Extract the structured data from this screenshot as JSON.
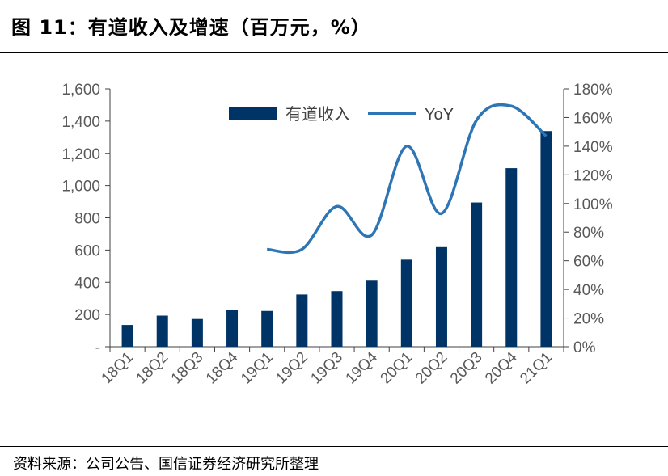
{
  "title": "图 11：有道收入及增速（百万元，%）",
  "source": "资料来源：公司公告、国信证券经济研究所整理",
  "colors": {
    "bar": "#003366",
    "line": "#2e75b6",
    "axis": "#404040",
    "text": "#595959"
  },
  "chart_data": {
    "type": "bar",
    "categories": [
      "18Q1",
      "18Q2",
      "18Q3",
      "18Q4",
      "19Q1",
      "19Q2",
      "19Q3",
      "19Q4",
      "20Q1",
      "20Q2",
      "20Q3",
      "20Q4",
      "21Q1"
    ],
    "series": [
      {
        "name": "有道收入",
        "type": "bar",
        "axis": "left",
        "values": [
          135,
          193,
          172,
          228,
          222,
          324,
          345,
          410,
          540,
          618,
          895,
          1108,
          1338
        ]
      },
      {
        "name": "YoY",
        "type": "line",
        "axis": "right",
        "values": [
          null,
          null,
          null,
          null,
          68,
          68,
          98,
          78,
          140,
          93,
          158,
          168,
          147
        ]
      }
    ],
    "y_left": {
      "min": 0,
      "max": 1600,
      "ticks": [
        "-",
        "200",
        "400",
        "600",
        "800",
        "1,000",
        "1,200",
        "1,400",
        "1,600"
      ]
    },
    "y_right": {
      "min": 0,
      "max": 180,
      "ticks": [
        "0%",
        "20%",
        "40%",
        "60%",
        "80%",
        "100%",
        "120%",
        "140%",
        "160%",
        "180%"
      ]
    },
    "legend": [
      "有道收入",
      "YoY"
    ],
    "legend_position": "top-center",
    "grid": false
  }
}
